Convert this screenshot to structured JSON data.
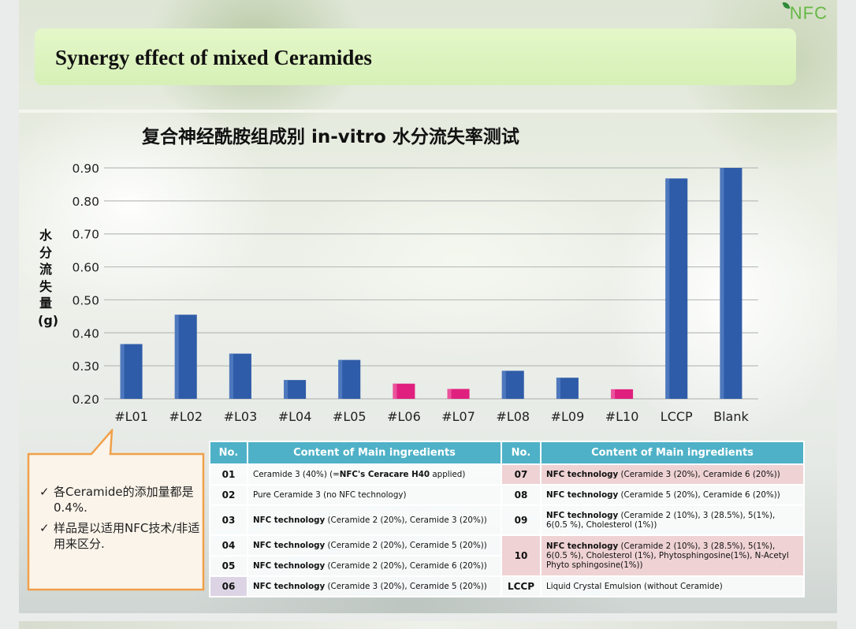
{
  "logo": {
    "text": "NFC"
  },
  "slide_title": "Synergy effect of mixed Ceramides",
  "colors": {
    "bar_blue": "#2f5ca8",
    "bar_pink": "#e0207f",
    "table_header": "#4eb1c7",
    "highlight_row": "#efd2d4",
    "title_band": "#dff5c2",
    "callout_border": "#f0a04a"
  },
  "chart_data": {
    "type": "bar",
    "title": "复合神经酰胺组成别 in-vitro 水分流失率测试",
    "ylabel": "水分流失量(g)",
    "xlabel": "",
    "ylim": [
      0.2,
      0.9
    ],
    "yticks": [
      "0.90",
      "0.80",
      "0.70",
      "0.60",
      "0.50",
      "0.40",
      "0.30",
      "0.20"
    ],
    "ytick_values": [
      0.9,
      0.8,
      0.7,
      0.6,
      0.5,
      0.4,
      0.3,
      0.2
    ],
    "grid": true,
    "categories": [
      "#L01",
      "#L02",
      "#L03",
      "#L04",
      "#L05",
      "#L06",
      "#L07",
      "#L08",
      "#L09",
      "#L10",
      "LCCP",
      "Blank"
    ],
    "values": [
      0.366,
      0.455,
      0.337,
      0.257,
      0.318,
      0.246,
      0.23,
      0.285,
      0.264,
      0.229,
      0.868,
      0.9
    ],
    "bar_colors": [
      "blue",
      "blue",
      "blue",
      "blue",
      "blue",
      "pink",
      "pink",
      "blue",
      "blue",
      "pink",
      "blue",
      "blue"
    ]
  },
  "callout": {
    "check": "✓",
    "notes": [
      "各Ceramide的添加量都是0.4%.",
      "样品是以适用NFC技术/非适用来区分."
    ]
  },
  "table": {
    "headers": {
      "no": "No.",
      "content": "Content of Main ingredients"
    },
    "rows": [
      {
        "left": {
          "no": "01",
          "parts": [
            "Ceramide 3 (40%) (=",
            "NFC's Ceracare H40",
            " applied)"
          ]
        },
        "right": {
          "no": "07",
          "bold": "NFC technology",
          "text": " (Ceramide 3 (20%), Ceramide 6 (20%))"
        }
      },
      {
        "left": {
          "no": "02",
          "text": "Pure Ceramide 3 (no NFC technology)"
        },
        "right": {
          "no": "08",
          "bold": "NFC technology",
          "text": " (Ceramide 5 (20%), Ceramide 6 (20%))"
        }
      },
      {
        "left": {
          "no": "03",
          "bold": "NFC technology",
          "text": " (Ceramide 2 (20%), Ceramide 3 (20%))"
        },
        "right": {
          "no": "09",
          "bold": "NFC technology",
          "text": " (Ceramide 2 (10%), 3 (28.5%), 5(1%), 6(0.5 %), Cholesterol (1%))"
        }
      },
      {
        "left": {
          "no": "04",
          "bold": "NFC technology",
          "text": " (Ceramide 2 (20%), Ceramide 5 (20%))"
        }
      },
      {
        "left": {
          "no": "05",
          "bold": "NFC technology",
          "text": " (Ceramide 2 (20%), Ceramide 6 (20%))"
        },
        "right": {
          "no": "10",
          "bold": "NFC technology",
          "text": " (Ceramide 2 (10%), 3 (28.5%), 5(1%), 6(0.5 %), Cholesterol (1%), Phytosphingosine(1%), N-Acetyl Phyto sphingosine(1%))"
        }
      },
      {
        "left": {
          "no": "06",
          "bold": "NFC technology",
          "text": " (Ceramide 3 (20%), Ceramide 5 (20%))"
        },
        "right": {
          "no": "LCCP",
          "text": "Liquid Crystal Emulsion (without Ceramide)"
        }
      }
    ]
  }
}
